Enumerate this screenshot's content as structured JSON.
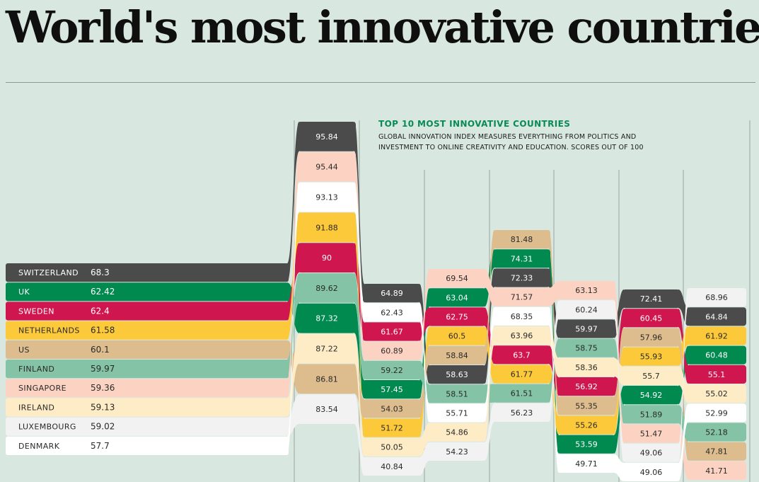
{
  "page": {
    "title": "World's most innovative countries"
  },
  "note": {
    "heading": "TOP 10 MOST INNOVATIVE COUNTRIES",
    "body": "GLOBAL INNOVATION INDEX MEASURES EVERYTHING FROM POLITICS AND INVESTMENT TO ONLINE CREATIVITY AND EDUCATION. SCORES OUT OF 100"
  },
  "colors": {
    "background": "#d8e8e0",
    "gridline": "#9aa5a0",
    "Switzerland": "#4b4b4b",
    "UK": "#008a50",
    "Sweden": "#d0164f",
    "Netherlands": "#fcc93a",
    "US": "#ddbc8d",
    "Finland": "#84c3a6",
    "Singapore": "#fcd3c3",
    "Ireland": "#fdecc6",
    "Luxembourg": "#f2f2f2",
    "Denmark": "#ffffff"
  },
  "chart_data": {
    "type": "bump",
    "title": "TOP 10 MOST INNOVATIVE COUNTRIES",
    "ylim": [
      0,
      100
    ],
    "series": [
      {
        "name": "SWITZERLAND",
        "overall": "68.3",
        "values": [
          95.84,
          64.89,
          58.63,
          72.33,
          59.97,
          72.41,
          64.84
        ]
      },
      {
        "name": "UK",
        "overall": "62.42",
        "values": [
          87.32,
          57.45,
          63.04,
          74.31,
          53.59,
          54.92,
          60.48
        ]
      },
      {
        "name": "SWEDEN",
        "overall": "62.4",
        "values": [
          90,
          61.67,
          62.75,
          63.7,
          56.92,
          60.45,
          55.1
        ]
      },
      {
        "name": "NETHERLANDS",
        "overall": "61.58",
        "values": [
          91.88,
          51.72,
          60.5,
          61.77,
          55.26,
          55.93,
          61.92
        ]
      },
      {
        "name": "US",
        "overall": "60.1",
        "values": [
          86.81,
          54.03,
          58.84,
          81.48,
          55.35,
          57.96,
          47.81
        ]
      },
      {
        "name": "FINLAND",
        "overall": "59.97",
        "values": [
          89.62,
          59.22,
          58.51,
          61.51,
          58.75,
          51.89,
          52.18
        ]
      },
      {
        "name": "SINGAPORE",
        "overall": "59.36",
        "values": [
          95.44,
          60.89,
          69.54,
          71.57,
          63.13,
          51.47,
          41.71
        ]
      },
      {
        "name": "IRELAND",
        "overall": "59.13",
        "values": [
          87.22,
          50.05,
          54.86,
          63.96,
          58.36,
          55.7,
          55.02
        ]
      },
      {
        "name": "LUXEMBOURG",
        "overall": "59.02",
        "values": [
          83.54,
          40.84,
          54.23,
          56.23,
          60.24,
          49.06,
          68.96
        ]
      },
      {
        "name": "DENMARK",
        "overall": "57.7",
        "values": [
          93.13,
          62.43,
          55.71,
          68.35,
          49.71,
          49.06,
          52.99
        ]
      }
    ]
  }
}
